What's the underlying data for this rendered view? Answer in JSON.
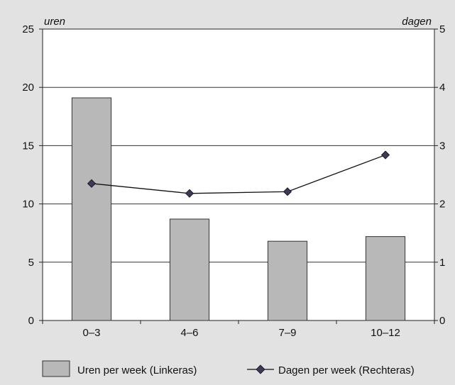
{
  "chart_data": {
    "type": "bar",
    "categories": [
      "0–3",
      "4–6",
      "7–9",
      "10–12"
    ],
    "left_axis": {
      "label": "uren",
      "ylim": [
        0,
        25
      ],
      "ticks": [
        0,
        5,
        10,
        15,
        20,
        25
      ]
    },
    "right_axis": {
      "label": "dagen",
      "ylim": [
        0,
        5
      ],
      "ticks": [
        0,
        1,
        2,
        3,
        4,
        5
      ]
    },
    "series": [
      {
        "name": "Uren per week (Linkeras)",
        "type": "bar",
        "axis": "left",
        "values": [
          19.1,
          8.7,
          6.8,
          7.2
        ]
      },
      {
        "name": "Dagen per week (Rechteras)",
        "type": "line",
        "axis": "right",
        "values": [
          2.35,
          2.18,
          2.21,
          2.84
        ]
      }
    ],
    "grid": true,
    "legend_position": "bottom",
    "colors": {
      "background": "#e2e2e2",
      "plot_area": "#ffffff",
      "bar_fill": "#b8b8b8",
      "bar_stroke": "#333333",
      "line": "#111111",
      "marker": "#3a3a5a"
    }
  }
}
